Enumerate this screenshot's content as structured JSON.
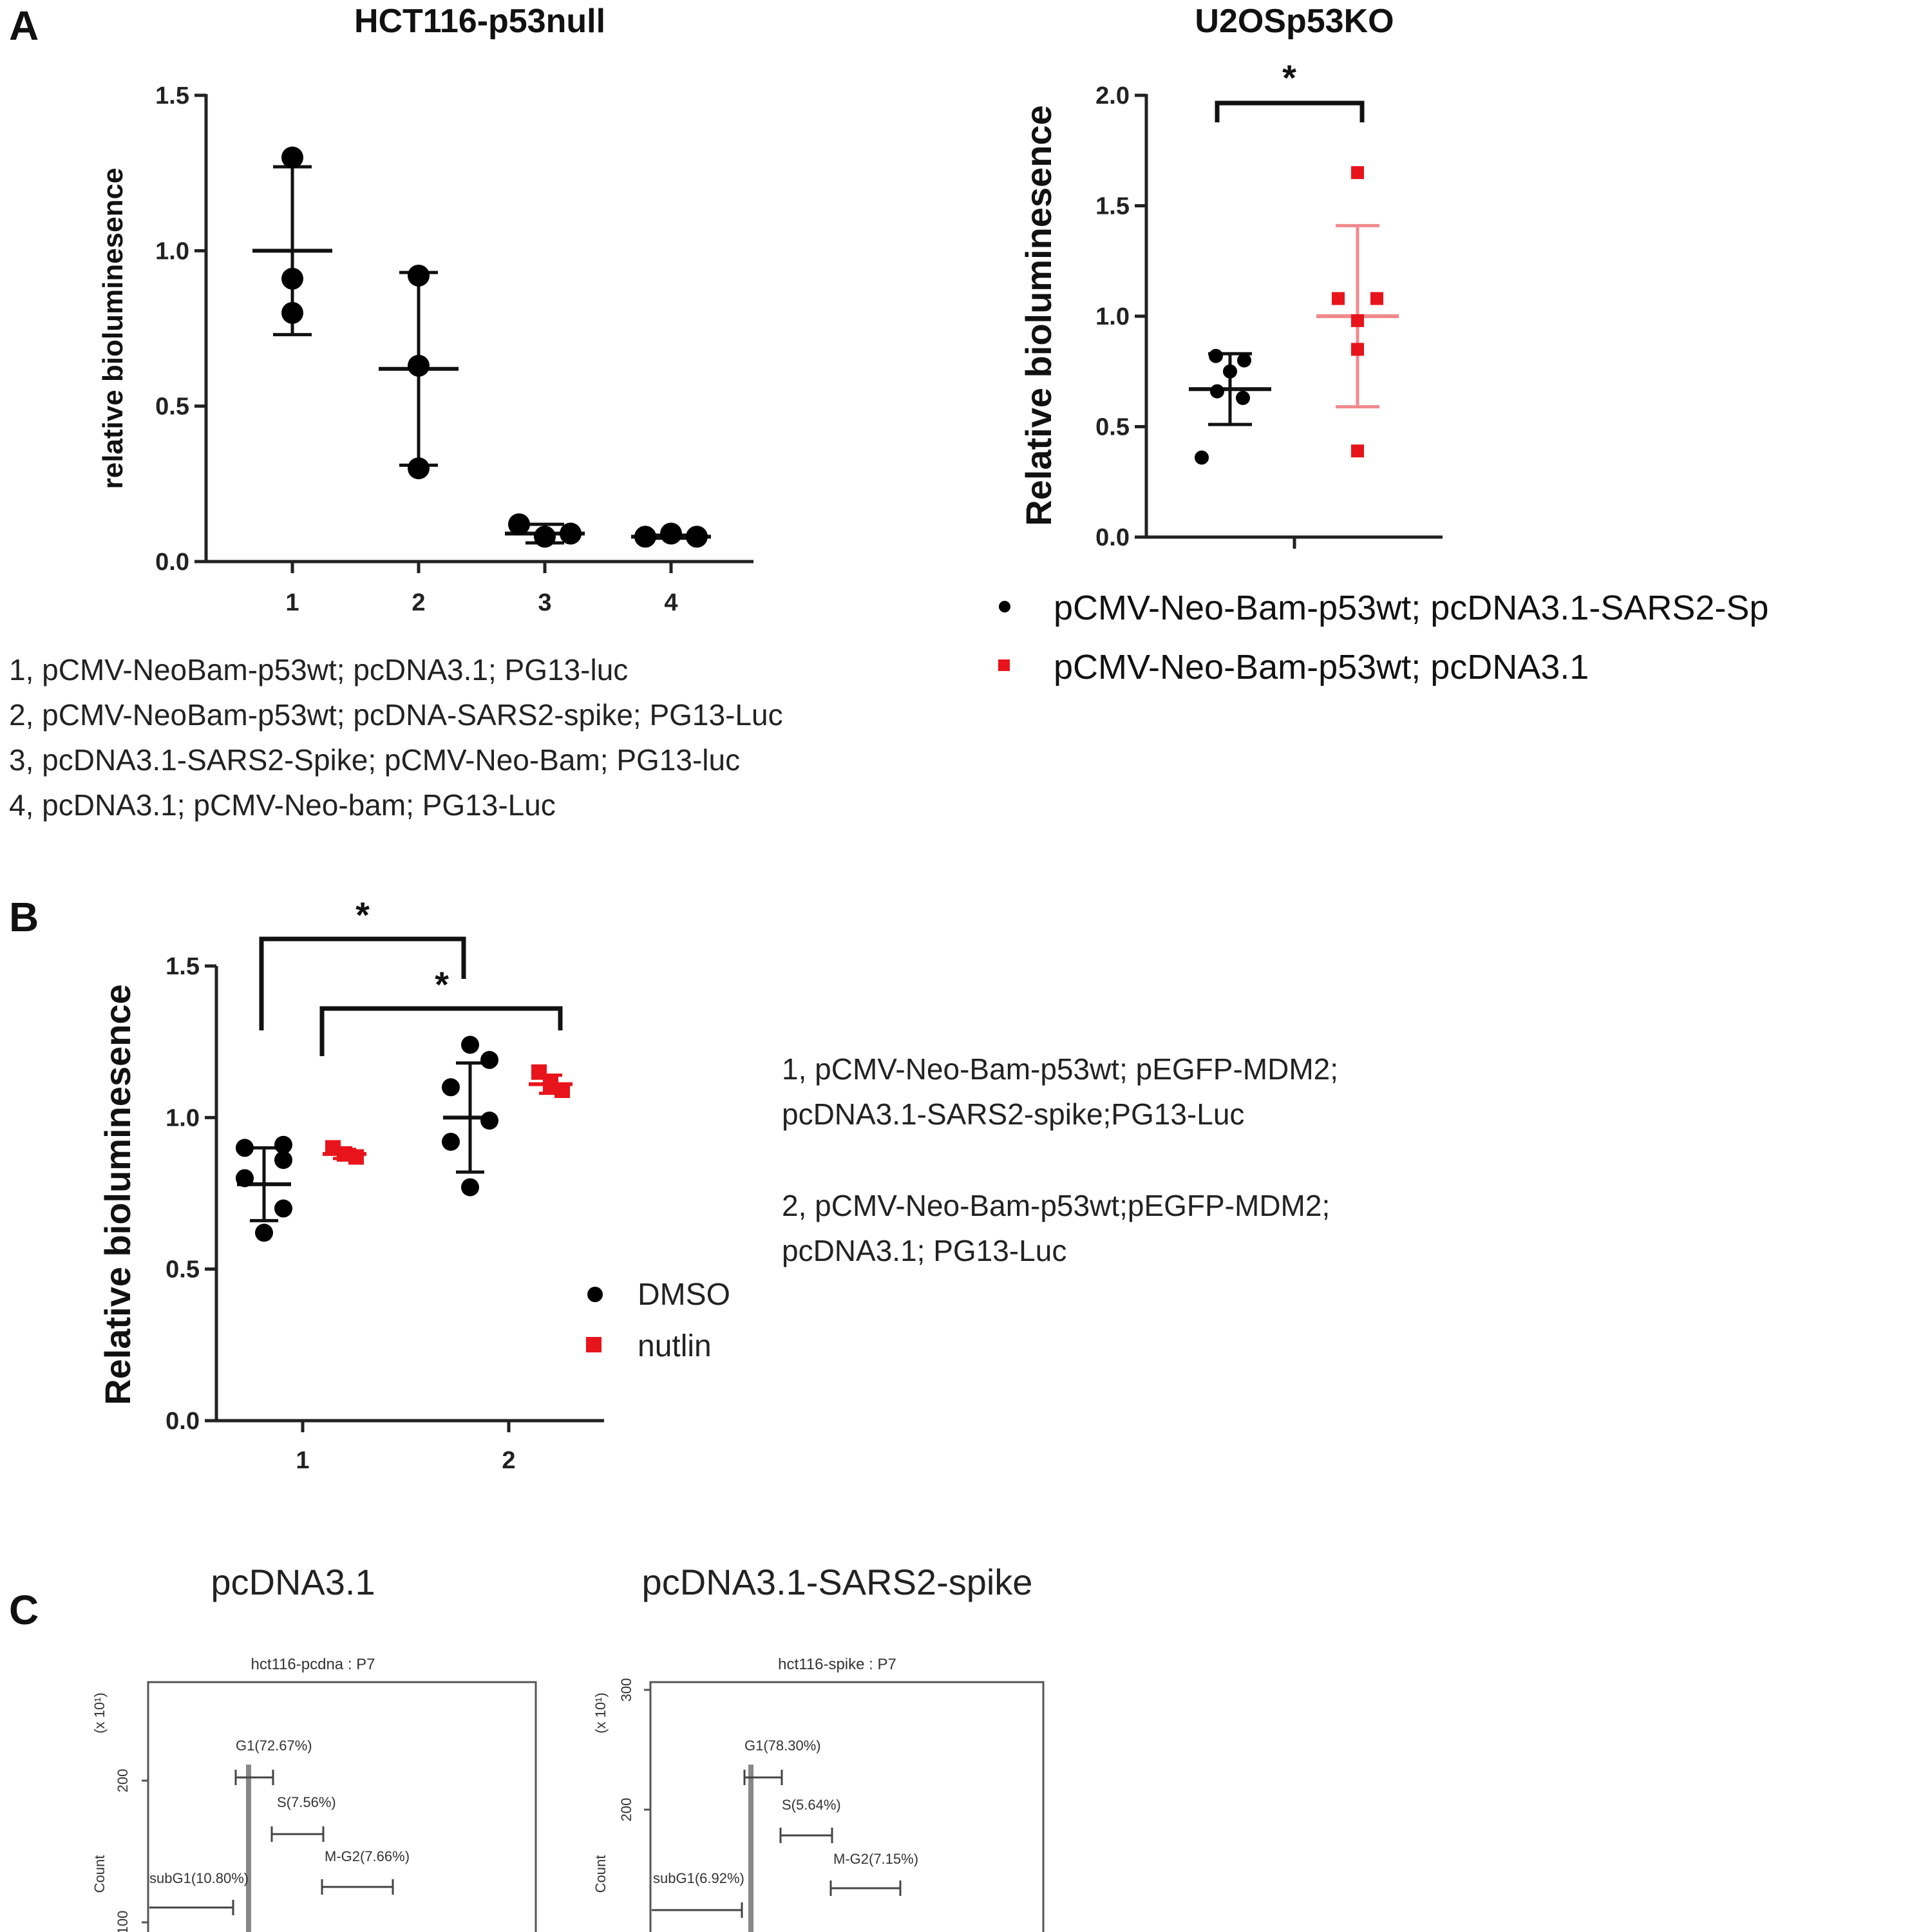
{
  "panels": {
    "a": "A",
    "b": "B",
    "c": "C"
  },
  "chart_data": [
    {
      "type": "scatter",
      "panel": "A",
      "title": "HCT116-p53null",
      "ylabel": "relative bioluminesence",
      "ylim": [
        0,
        1.5
      ],
      "yticks": [
        "0.0",
        "0.5",
        "1.0",
        "1.5"
      ],
      "categories": [
        "1",
        "2",
        "3",
        "4"
      ],
      "series": [
        {
          "category": "1",
          "color": "#000000",
          "points": [
            1.3,
            0.91,
            0.8
          ],
          "mean": 1.0,
          "sd": 0.27
        },
        {
          "category": "2",
          "color": "#000000",
          "points": [
            0.92,
            0.63,
            0.3
          ],
          "mean": 0.62,
          "sd": 0.31
        },
        {
          "category": "3",
          "color": "#000000",
          "points": [
            0.12,
            0.08,
            0.09
          ],
          "mean": 0.09,
          "sd": 0.03
        },
        {
          "category": "4",
          "color": "#000000",
          "points": [
            0.08,
            0.09,
            0.08
          ],
          "mean": 0.08,
          "sd": 0.005
        }
      ],
      "notes": [
        "1, pCMV-NeoBam-p53wt; pcDNA3.1; PG13-luc",
        "2, pCMV-NeoBam-p53wt; pcDNA-SARS2-spike; PG13-Luc",
        "3, pcDNA3.1-SARS2-Spike; pCMV-Neo-Bam; PG13-luc",
        "4, pcDNA3.1; pCMV-Neo-bam; PG13-Luc"
      ]
    },
    {
      "type": "scatter",
      "panel": "A",
      "title": "U2OSp53KO",
      "ylabel": "Relative bioluminesence",
      "ylim": [
        0,
        2.0
      ],
      "yticks": [
        "0.0",
        "0.5",
        "1.0",
        "1.5",
        "2.0"
      ],
      "series": [
        {
          "name": "pCMV-Neo-Bam-p53wt; pcDNA3.1-SARS2-Sp",
          "color": "#000000",
          "marker": "circle",
          "points": [
            0.82,
            0.8,
            0.75,
            0.66,
            0.63,
            0.36
          ],
          "mean": 0.67,
          "sd": 0.16
        },
        {
          "name": "pCMV-Neo-Bam-p53wt; pcDNA3.1",
          "color": "#e8141b",
          "marker": "square",
          "points": [
            1.65,
            1.08,
            1.08,
            0.98,
            0.85,
            0.39
          ],
          "mean": 1.0,
          "sd": 0.41
        }
      ],
      "significance": "*"
    },
    {
      "type": "scatter",
      "panel": "B",
      "title": "",
      "ylabel": "Relative bioluminesence",
      "ylim": [
        0,
        1.5
      ],
      "yticks": [
        "0.0",
        "0.5",
        "1.0",
        "1.5"
      ],
      "categories": [
        "1",
        "2"
      ],
      "series": [
        {
          "name": "DMSO",
          "color": "#000000",
          "marker": "circle",
          "groups": [
            {
              "category": "1",
              "points": [
                0.91,
                0.9,
                0.86,
                0.8,
                0.7,
                0.62
              ],
              "mean": 0.78,
              "sd": 0.12
            },
            {
              "category": "2",
              "points": [
                1.24,
                1.19,
                1.1,
                0.99,
                0.92,
                0.77
              ],
              "mean": 1.0,
              "sd": 0.18
            }
          ]
        },
        {
          "name": "nutlin",
          "color": "#e8141b",
          "marker": "square",
          "groups": [
            {
              "category": "1",
              "points": [
                0.9,
                0.88,
                0.87
              ],
              "mean": 0.88,
              "sd": 0.015
            },
            {
              "category": "2",
              "points": [
                1.15,
                1.11,
                1.09
              ],
              "mean": 1.11,
              "sd": 0.03
            }
          ]
        }
      ],
      "significance": [
        "*",
        "*"
      ],
      "notes": [
        "1, pCMV-Neo-Bam-p53wt; pEGFP-MDM2;",
        "pcDNA3.1-SARS2-spike;PG13-Luc",
        "2, pCMV-Neo-Bam-p53wt;pEGFP-MDM2;",
        "pcDNA3.1; PG13-Luc"
      ]
    },
    {
      "type": "histogram",
      "panel": "C",
      "title": "pcDNA3.1",
      "plot_title": "hct116-pcdna : P7",
      "ylabel": "Count",
      "yunit": "(x 10¹)",
      "yticks": [
        "200",
        "100"
      ],
      "gates": [
        "G1(72.67%)",
        "S(7.56%)",
        "M-G2(7.66%)",
        "subG1(10.80%)"
      ]
    },
    {
      "type": "histogram",
      "panel": "C",
      "title": "pcDNA3.1-SARS2-spike",
      "plot_title": "hct116-spike : P7",
      "ylabel": "Count",
      "yunit": "(x 10¹)",
      "yticks": [
        "300",
        "200"
      ],
      "gates": [
        "G1(78.30%)",
        "S(5.64%)",
        "M-G2(7.15%)",
        "subG1(6.92%)"
      ]
    }
  ]
}
